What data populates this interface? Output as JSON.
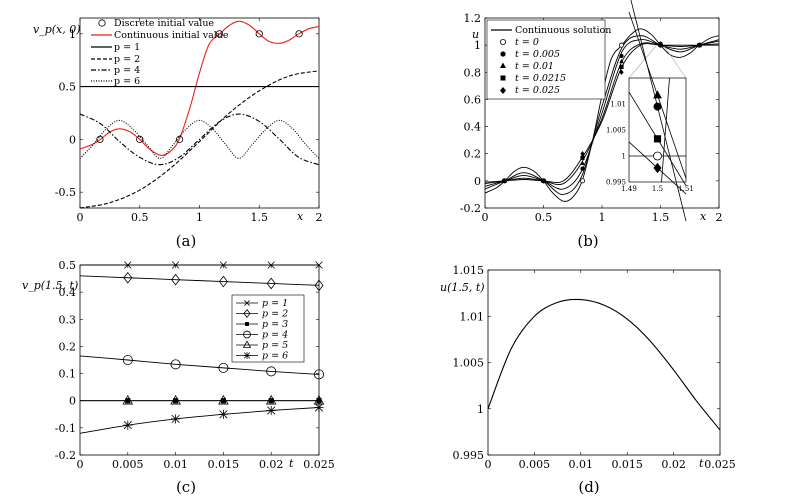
{
  "chart_data": [
    {
      "id": "a",
      "type": "line",
      "caption": "(a)",
      "ylabel": "v_p(x,0)",
      "xlabel": "x",
      "xlim": [
        0,
        2
      ],
      "ylim": [
        -0.65,
        1.15
      ],
      "xticks": [
        0,
        0.5,
        1,
        1.5,
        2
      ],
      "yticks": [
        -0.5,
        0,
        0.5,
        1
      ],
      "xtick_labels": [
        "0",
        "0.5",
        "1",
        "1.5",
        "2"
      ],
      "ytick_labels": [
        "-0.5",
        "0",
        "0.5",
        "1"
      ],
      "x_axis_label": "x",
      "y_axis_label": "v_p(x, 0)",
      "legend": [
        "Discrete initial value",
        "Continuous initial value",
        "p = 1",
        "p = 2",
        "p = 4",
        "p = 6"
      ],
      "legend_position": "top-right",
      "discrete_initial_value": {
        "x": [
          0.1667,
          0.5,
          0.8333,
          1.1667,
          1.5,
          1.8333
        ],
        "y": [
          0,
          0,
          0,
          1,
          1,
          1
        ]
      },
      "series": [
        {
          "name": "Continuous initial value",
          "color": "#e8211b",
          "x": [
            0,
            0.1,
            0.17,
            0.25,
            0.33,
            0.42,
            0.5,
            0.58,
            0.67,
            0.75,
            0.83,
            0.92,
            1.0,
            1.08,
            1.17,
            1.25,
            1.33,
            1.42,
            1.5,
            1.58,
            1.67,
            1.75,
            1.83,
            1.92,
            2.0
          ],
          "y": [
            -0.09,
            -0.05,
            0,
            0.07,
            0.1,
            0.07,
            0,
            -0.09,
            -0.15,
            -0.12,
            0,
            0.3,
            0.63,
            0.9,
            1.0,
            1.08,
            1.12,
            1.08,
            1.0,
            0.93,
            0.91,
            0.94,
            1.0,
            1.05,
            1.07
          ]
        },
        {
          "name": "p = 1",
          "x": [
            0,
            2
          ],
          "y": [
            0.5,
            0.5
          ]
        },
        {
          "name": "p = 2",
          "x": [
            0,
            0.25,
            0.5,
            0.75,
            1.0,
            1.25,
            1.5,
            1.75,
            2.0
          ],
          "y": [
            -0.65,
            -0.6,
            -0.48,
            -0.28,
            -0.02,
            0.25,
            0.46,
            0.6,
            0.65
          ]
        },
        {
          "name": "p = 4",
          "x": [
            0,
            0.17,
            0.33,
            0.5,
            0.67,
            0.83,
            1.0,
            1.17,
            1.33,
            1.5,
            1.67,
            1.83,
            2.0
          ],
          "y": [
            0.24,
            0.15,
            -0.02,
            -0.17,
            -0.24,
            -0.17,
            0,
            0.17,
            0.24,
            0.17,
            0,
            -0.17,
            -0.24
          ]
        },
        {
          "name": "p = 6",
          "x": [
            0,
            0.11,
            0.22,
            0.33,
            0.44,
            0.56,
            0.67,
            0.78,
            0.89,
            1.0,
            1.11,
            1.22,
            1.33,
            1.44,
            1.56,
            1.67,
            1.78,
            1.89,
            2.0
          ],
          "y": [
            -0.18,
            -0.05,
            0.1,
            0.18,
            0.1,
            -0.05,
            -0.18,
            -0.05,
            0.1,
            0.18,
            0.1,
            -0.05,
            -0.18,
            -0.05,
            0.1,
            0.18,
            0.1,
            -0.05,
            -0.18
          ]
        }
      ]
    },
    {
      "id": "b",
      "type": "line",
      "caption": "(b)",
      "xlim": [
        0,
        2
      ],
      "ylim": [
        -0.2,
        1.2
      ],
      "xtick_labels": [
        "0",
        "0.5",
        "1",
        "1.5",
        "2"
      ],
      "ytick_labels": [
        "-0.2",
        "0",
        "0.2",
        "0.4",
        "0.6",
        "0.8",
        "1",
        "1.2"
      ],
      "x_axis_label": "x",
      "y_axis_label": "u",
      "legend": [
        "Continuous solution",
        "t = 0",
        "t = 0.005",
        "t = 0.01",
        "t = 0.0215",
        "t = 0.025"
      ],
      "legend_position": "top-left",
      "series": [
        {
          "name": "t = 0",
          "x": [
            0,
            0.1,
            0.17,
            0.25,
            0.33,
            0.42,
            0.5,
            0.58,
            0.67,
            0.75,
            0.83,
            0.92,
            1.0,
            1.08,
            1.17,
            1.25,
            1.33,
            1.42,
            1.5,
            1.58,
            1.67,
            1.75,
            1.83,
            1.92,
            2.0
          ],
          "y": [
            -0.09,
            -0.05,
            0,
            0.07,
            0.1,
            0.07,
            0,
            -0.09,
            -0.15,
            -0.12,
            0,
            0.3,
            0.63,
            0.9,
            1.0,
            1.08,
            1.12,
            1.08,
            1.0,
            0.93,
            0.91,
            0.94,
            1.0,
            1.05,
            1.07
          ]
        },
        {
          "name": "t = 0.005",
          "x": [
            0,
            0.17,
            0.33,
            0.5,
            0.67,
            0.83,
            1.0,
            1.17,
            1.33,
            1.5,
            1.67,
            1.83,
            2.0
          ],
          "y": [
            -0.06,
            0,
            0.06,
            0,
            -0.1,
            0.04,
            0.55,
            0.98,
            1.07,
            1.0,
            0.95,
            1.0,
            1.04
          ]
        },
        {
          "name": "t = 0.01",
          "x": [
            0,
            0.17,
            0.33,
            0.5,
            0.67,
            0.83,
            1.0,
            1.17,
            1.33,
            1.5,
            1.67,
            1.83,
            2.0
          ],
          "y": [
            -0.04,
            0,
            0.04,
            0,
            -0.06,
            0.08,
            0.5,
            0.95,
            1.04,
            1.0,
            0.97,
            1.0,
            1.03
          ]
        },
        {
          "name": "t = 0.0215",
          "x": [
            0,
            0.17,
            0.33,
            0.5,
            0.67,
            0.83,
            1.0,
            1.17,
            1.33,
            1.5,
            1.67,
            1.83,
            2.0
          ],
          "y": [
            -0.02,
            0,
            0.02,
            0,
            -0.02,
            0.14,
            0.46,
            0.88,
            1.01,
            1.0,
            0.99,
            1.0,
            1.01
          ]
        },
        {
          "name": "t = 0.025",
          "x": [
            0,
            0.17,
            0.33,
            0.5,
            0.67,
            0.83,
            1.0,
            1.17,
            1.33,
            1.5,
            1.67,
            1.83,
            2.0
          ],
          "y": [
            -0.01,
            0,
            0.01,
            0,
            0.0,
            0.17,
            0.44,
            0.84,
            1.0,
            1.0,
            1.0,
            1.0,
            1.0
          ]
        }
      ],
      "markers": {
        "x": [
          0.1667,
          0.5,
          0.8333,
          1.1667,
          1.5,
          1.8333
        ],
        "t0": [
          0,
          0,
          0,
          1,
          1,
          1
        ],
        "t0005": [
          0,
          0,
          0.09,
          0.92,
          1.01,
          1.0
        ],
        "t001": [
          0,
          0,
          0.13,
          0.88,
          1.01,
          1.0
        ],
        "t00215": [
          0,
          0,
          0.17,
          0.84,
          1.003,
          1.0
        ],
        "t0025": [
          0,
          0,
          0.2,
          0.8,
          0.998,
          1.0
        ]
      },
      "inset": {
        "xlim": [
          1.49,
          1.51
        ],
        "ylim": [
          0.995,
          1.015
        ],
        "xtick_labels": [
          "1.49",
          "1.5",
          "1.51"
        ],
        "ytick_labels": [
          "0.995",
          "1",
          "1.005",
          "1.01"
        ],
        "points_y": {
          "t0": 1.0,
          "t0005": 1.0095,
          "t001": 1.0117,
          "t00215": 1.0033,
          "t0025": 0.9977
        }
      }
    },
    {
      "id": "c",
      "type": "line",
      "caption": "(c)",
      "xlim": [
        0,
        0.025
      ],
      "ylim": [
        -0.2,
        0.5
      ],
      "xtick_labels": [
        "0",
        "0.005",
        "0.01",
        "0.015",
        "0.02",
        "0.025"
      ],
      "ytick_labels": [
        "-0.2",
        "-0.1",
        "0",
        "0.1",
        "0.2",
        "0.3",
        "0.4",
        "0.5"
      ],
      "x_axis_label": "t",
      "y_axis_label": "v_p(1.5, t)",
      "legend": [
        "p = 1",
        "p = 2",
        "p = 3",
        "p = 4",
        "p = 5",
        "p = 6"
      ],
      "legend_position": "center-right",
      "x": [
        0,
        0.005,
        0.01,
        0.015,
        0.02,
        0.025
      ],
      "series": [
        {
          "name": "p = 1",
          "marker": "x",
          "values": [
            0.5,
            0.5,
            0.5,
            0.5,
            0.5,
            0.5
          ]
        },
        {
          "name": "p = 2",
          "marker": "diamond",
          "values": [
            0.46,
            0.453,
            0.446,
            0.439,
            0.432,
            0.425
          ]
        },
        {
          "name": "p = 3",
          "marker": "square",
          "values": [
            0,
            0,
            0,
            0,
            0,
            0
          ]
        },
        {
          "name": "p = 4",
          "marker": "circle",
          "values": [
            0.165,
            0.15,
            0.134,
            0.121,
            0.108,
            0.097
          ]
        },
        {
          "name": "p = 5",
          "marker": "triangle",
          "values": [
            0,
            0,
            0,
            0,
            0,
            0
          ]
        },
        {
          "name": "p = 6",
          "marker": "star",
          "values": [
            -0.12,
            -0.09,
            -0.067,
            -0.05,
            -0.036,
            -0.025
          ]
        }
      ]
    },
    {
      "id": "d",
      "type": "line",
      "caption": "(d)",
      "xlim": [
        0,
        0.025
      ],
      "ylim": [
        0.995,
        1.015
      ],
      "xtick_labels": [
        "0",
        "0.005",
        "0.01",
        "0.015",
        "0.02",
        "0.025"
      ],
      "ytick_labels": [
        "0.995",
        "1",
        "1.005",
        "1.01",
        "1.015"
      ],
      "x_axis_label": "t",
      "y_axis_label": "u(1.5, t)",
      "series": [
        {
          "name": "u(1.5,t)",
          "x": [
            0,
            0.0025,
            0.005,
            0.0075,
            0.01,
            0.0125,
            0.015,
            0.0175,
            0.02,
            0.0225,
            0.025
          ],
          "values": [
            1.0,
            1.0065,
            1.01,
            1.0115,
            1.0118,
            1.0112,
            1.0097,
            1.0073,
            1.0042,
            1.0008,
            0.9977
          ]
        }
      ]
    }
  ]
}
